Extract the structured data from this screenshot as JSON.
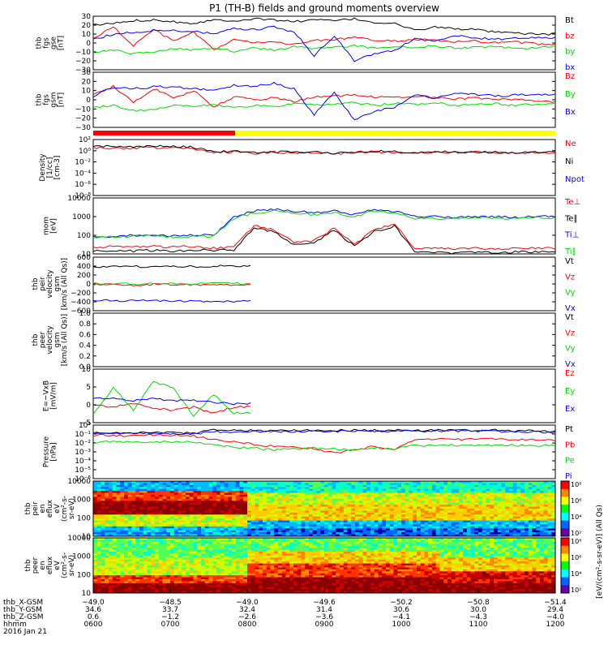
{
  "title": "P1 (TH-B) fields and ground moments overview",
  "colors": {
    "black": "#000000",
    "red": "#ff0000",
    "green": "#00dd00",
    "blue": "#0000ff",
    "yellow_bar": "#ffff00",
    "red_bar": "#ff0000"
  },
  "chart_data": [
    {
      "type": "line",
      "ylabel": [
        "thb",
        "fgs",
        "gse",
        "[nT]"
      ],
      "yticks": [
        "30",
        "20",
        "10",
        "0",
        "−10",
        "−20",
        "−30"
      ],
      "ylim": [
        -30,
        30
      ],
      "series": [
        {
          "name": "Bt",
          "color": "#000000",
          "values": [
            20,
            22,
            25,
            26,
            24,
            22,
            26,
            25,
            27,
            26,
            24,
            26,
            25,
            27,
            23,
            22,
            14,
            18,
            16,
            15,
            12,
            11,
            10,
            10
          ]
        },
        {
          "name": "bz",
          "color": "#ff0000",
          "values": [
            5,
            18,
            -3,
            15,
            2,
            12,
            -8,
            4,
            0,
            2,
            -2,
            3,
            4,
            6,
            3,
            2,
            4,
            3,
            1,
            2,
            0,
            1,
            -1,
            -2
          ]
        },
        {
          "name": "by",
          "color": "#00dd00",
          "values": [
            -10,
            -8,
            -12,
            -10,
            -6,
            -8,
            -5,
            -9,
            -6,
            -8,
            -4,
            -6,
            -5,
            -3,
            -6,
            -4,
            -5,
            -3,
            -6,
            -5,
            -4,
            -6,
            -5,
            -4
          ]
        },
        {
          "name": "bx",
          "color": "#0000ff",
          "values": [
            4,
            10,
            12,
            14,
            14,
            13,
            10,
            16,
            15,
            18,
            12,
            -14,
            8,
            -20,
            -12,
            -8,
            5,
            2,
            8,
            6,
            4,
            5,
            6,
            6
          ]
        }
      ]
    },
    {
      "type": "line",
      "ylabel": [
        "thb",
        "fgs",
        "gsm",
        "[nT]"
      ],
      "yticks": [
        "30",
        "20",
        "10",
        "0",
        "−10",
        "−20",
        "−30"
      ],
      "ylim": [
        -30,
        30
      ],
      "series": [
        {
          "name": "Bz",
          "color": "#ff0000",
          "values": [
            5,
            15,
            -3,
            12,
            2,
            10,
            -8,
            3,
            0,
            2,
            -2,
            3,
            4,
            5,
            3,
            2,
            4,
            3,
            1,
            2,
            0,
            1,
            -1,
            -2
          ]
        },
        {
          "name": "By",
          "color": "#00dd00",
          "values": [
            -8,
            -6,
            -12,
            -10,
            -6,
            -7,
            -5,
            -9,
            -6,
            -8,
            -4,
            -6,
            -5,
            -3,
            -6,
            -4,
            -5,
            -3,
            -6,
            -5,
            -4,
            -6,
            -5,
            -4
          ]
        },
        {
          "name": "Bx",
          "color": "#0000ff",
          "values": [
            4,
            14,
            12,
            14,
            14,
            12,
            10,
            16,
            15,
            18,
            12,
            -16,
            8,
            -22,
            -12,
            -8,
            5,
            2,
            8,
            6,
            4,
            5,
            6,
            6
          ]
        }
      ]
    },
    {
      "type": "line",
      "ylabel": [
        "Density",
        "[1/cc]",
        "[cm-3]"
      ],
      "scale": "log",
      "yticks": [
        "10²",
        "10⁰",
        "10⁻²",
        "10⁻⁴",
        "10⁻⁶",
        "10⁻⁸"
      ],
      "ylim": [
        -8,
        3
      ],
      "series": [
        {
          "name": "Ne",
          "color": "#ff0000",
          "values": [
            1.4,
            1.3,
            1.3,
            1.4,
            1.3,
            1.2,
            0.5,
            0.6,
            0.3,
            0.5,
            0.4,
            0.5,
            0.2,
            0.5,
            0.6,
            0.5,
            0.4,
            0.5,
            0.4,
            0.5,
            0.4,
            0.3,
            0.4,
            0.4
          ]
        },
        {
          "name": "Ni",
          "color": "#000000",
          "values": [
            1.7,
            1.7,
            1.6,
            1.7,
            1.6,
            1.5,
            0.6,
            0.7,
            0.4,
            0.6,
            0.5,
            0.6,
            0.3,
            0.6,
            0.7,
            0.6,
            0.5,
            0.6,
            0.5,
            0.6,
            0.5,
            0.4,
            0.5,
            0.5
          ]
        },
        {
          "name": "Npot",
          "color": "#0000ff",
          "values": []
        }
      ]
    },
    {
      "type": "line",
      "ylabel": [
        "mom",
        "[eV]"
      ],
      "scale": "log",
      "yticks": [
        "10000",
        "1000",
        "100",
        "10"
      ],
      "ylim": [
        1,
        4
      ],
      "series": [
        {
          "name": "Te⊥",
          "color": "#ff0000",
          "values": [
            1.35,
            1.4,
            1.38,
            1.4,
            1.38,
            1.4,
            1.3,
            1.35,
            2.5,
            2.3,
            1.6,
            1.7,
            2.4,
            1.5,
            2.3,
            2.6,
            1.3,
            1.3,
            1.25,
            1.3,
            1.25,
            1.3,
            1.3,
            1.3
          ]
        },
        {
          "name": "Te∥",
          "color": "#000000",
          "values": [
            1.15,
            1.2,
            1.15,
            1.2,
            1.15,
            1.2,
            1.2,
            1.2,
            2.4,
            2.2,
            1.5,
            1.6,
            2.3,
            1.4,
            2.2,
            2.5,
            1.1,
            1.1,
            1.05,
            1.1,
            1.05,
            1.1,
            1.1,
            1.1
          ]
        },
        {
          "name": "Ti⊥",
          "color": "#0000ff",
          "values": [
            1.9,
            1.95,
            2.0,
            2.0,
            1.95,
            2.0,
            2.0,
            3.0,
            3.3,
            3.4,
            3.3,
            3.2,
            3.3,
            3.1,
            3.4,
            3.3,
            3.0,
            3.0,
            2.95,
            3.0,
            3.0,
            2.95,
            3.0,
            3.0
          ]
        },
        {
          "name": "Ti∥",
          "color": "#00dd00",
          "values": [
            1.9,
            1.9,
            1.95,
            2.0,
            1.9,
            1.95,
            1.95,
            2.9,
            3.2,
            3.3,
            3.2,
            3.1,
            3.2,
            3.0,
            3.3,
            3.2,
            2.9,
            2.9,
            2.9,
            2.95,
            2.9,
            2.9,
            2.95,
            2.95
          ]
        }
      ]
    },
    {
      "type": "line",
      "ylabel": [
        "thb",
        "peir",
        "velocity",
        "gsm",
        "[km/s (All Qs)]"
      ],
      "yticks": [
        "600",
        "400",
        "200",
        "0",
        "−200",
        "−400",
        "−600"
      ],
      "ylim": [
        -600,
        600
      ],
      "series": [
        {
          "name": "Vt",
          "color": "#000000",
          "values": [
            380,
            385,
            390,
            380,
            395,
            390,
            400,
            410,
            null,
            null,
            null,
            null,
            null,
            null,
            null,
            null,
            null,
            null,
            null,
            null,
            null,
            null,
            null,
            null
          ]
        },
        {
          "name": "Vz",
          "color": "#ff0000",
          "values": [
            -20,
            -10,
            -30,
            -5,
            -20,
            -15,
            -25,
            -20,
            null,
            null,
            null,
            null,
            null,
            null,
            null,
            null,
            null,
            null,
            null,
            null,
            null,
            null,
            null,
            null
          ]
        },
        {
          "name": "Vy",
          "color": "#00dd00",
          "values": [
            10,
            20,
            0,
            15,
            10,
            5,
            20,
            10,
            null,
            null,
            null,
            null,
            null,
            null,
            null,
            null,
            null,
            null,
            null,
            null,
            null,
            null,
            null,
            null
          ]
        },
        {
          "name": "Vx",
          "color": "#0000ff",
          "values": [
            -370,
            -375,
            -380,
            -370,
            -385,
            -380,
            -390,
            -395,
            null,
            null,
            null,
            null,
            null,
            null,
            null,
            null,
            null,
            null,
            null,
            null,
            null,
            null,
            null,
            null
          ]
        }
      ]
    },
    {
      "type": "line",
      "ylabel": [
        "thb",
        "peer",
        "velocity",
        "gsm",
        "[km/s (All Qs)]"
      ],
      "yticks": [
        "1.0",
        "0.8",
        "0.6",
        "0.4",
        "0.2",
        "0.0"
      ],
      "ylim": [
        0,
        1
      ],
      "series": [
        {
          "name": "Vt",
          "color": "#000000",
          "values": []
        },
        {
          "name": "Vz",
          "color": "#ff0000",
          "values": []
        },
        {
          "name": "Vy",
          "color": "#00dd00",
          "values": []
        },
        {
          "name": "Vx",
          "color": "#0000ff",
          "values": []
        }
      ]
    },
    {
      "type": "line",
      "ylabel": [
        "E=−VxB",
        "[mV/m]"
      ],
      "yticks": [
        "10",
        "5",
        "0",
        "−5"
      ],
      "ylim": [
        -7,
        10
      ],
      "series": [
        {
          "name": "Ez",
          "color": "#ff0000",
          "values": [
            -1.5,
            -2,
            -1,
            -2.5,
            -3,
            -2,
            -4,
            -2,
            null,
            null,
            null,
            null,
            null,
            null,
            null,
            null,
            null,
            null,
            null,
            null,
            null,
            null,
            null,
            null
          ]
        },
        {
          "name": "Ey",
          "color": "#00dd00",
          "values": [
            -4,
            4,
            -3,
            6,
            4,
            -5,
            2,
            -4,
            null,
            null,
            null,
            null,
            null,
            null,
            null,
            null,
            null,
            null,
            null,
            null,
            null,
            null,
            null,
            null
          ]
        },
        {
          "name": "Ex",
          "color": "#0000ff",
          "values": [
            0.5,
            1,
            0,
            0.5,
            0,
            0,
            -0.5,
            -1,
            null,
            null,
            null,
            null,
            null,
            null,
            null,
            null,
            null,
            null,
            null,
            null,
            null,
            null,
            null,
            null
          ]
        }
      ]
    },
    {
      "type": "line",
      "ylabel": [
        "Pressure",
        "[nPa]"
      ],
      "scale": "log",
      "yticks": [
        "10⁰",
        "10⁻¹",
        "10⁻²",
        "10⁻³",
        "10⁻⁴",
        "10⁻⁵",
        "10⁻⁶"
      ],
      "ylim": [
        -6,
        0.3
      ],
      "series": [
        {
          "name": "Pt",
          "color": "#000000",
          "values": [
            -0.6,
            -0.65,
            -0.6,
            -0.62,
            -0.6,
            -0.62,
            -0.3,
            -0.35,
            -0.3,
            -0.4,
            -0.35,
            -0.3,
            -0.35,
            -0.3,
            -0.32,
            -0.3,
            -0.35,
            -0.3,
            -0.3,
            -0.32,
            -0.3,
            -0.35,
            -0.4,
            -0.45
          ]
        },
        {
          "name": "Pb",
          "color": "#ff0000",
          "values": [
            -0.9,
            -0.9,
            -0.95,
            -0.9,
            -0.9,
            -0.95,
            -1.4,
            -1.6,
            -2.0,
            -2.2,
            -2.3,
            -2.5,
            -3.0,
            -2.6,
            -2.2,
            -2.5,
            -1.5,
            -1.3,
            -1.4,
            -1.3,
            -1.35,
            -1.4,
            -1.45,
            -1.5
          ]
        },
        {
          "name": "Pe",
          "color": "#00dd00",
          "values": [
            -1.7,
            -1.65,
            -1.7,
            -1.65,
            -1.7,
            -1.7,
            -2.0,
            -2.3,
            -2.4,
            -2.6,
            -2.5,
            -2.4,
            -2.5,
            -2.6,
            -2.4,
            -2.5,
            -2.1,
            -2.1,
            -2.05,
            -2.1,
            -2.1,
            -2.05,
            -2.1,
            -2.1
          ]
        },
        {
          "name": "Pi",
          "color": "#0000ff",
          "values": [
            -0.7,
            -0.7,
            -0.7,
            -0.7,
            -0.7,
            -0.7,
            -0.5,
            -0.5,
            -0.4,
            -0.5,
            -0.45,
            -0.4,
            -0.45,
            -0.4,
            -0.42,
            -0.4,
            -0.45,
            -0.4,
            -0.4,
            -0.42,
            -0.4,
            -0.45,
            -0.5,
            -0.55
          ]
        }
      ]
    },
    {
      "type": "heatmap",
      "ylabel": [
        "thb",
        "peir",
        "en",
        "eflux",
        "eV",
        "(cm²-s-",
        "sr-eV)"
      ],
      "yticks": [
        "10000",
        "1000",
        "100",
        "10"
      ],
      "colorbar": {
        "ticks": [
          "10⁸",
          "10⁶",
          "10⁴",
          "10²"
        ],
        "label": "[eV/(cm²-s-sr-eV)] (All Qs)"
      }
    },
    {
      "type": "heatmap",
      "ylabel": [
        "thb",
        "peer",
        "en",
        "eflux",
        "eV",
        "(cm²-s-",
        "sr-eV)"
      ],
      "yticks": [
        "10000",
        "1000",
        "100",
        "10"
      ],
      "colorbar": {
        "ticks": [
          "10⁸",
          "10⁶",
          "10⁴",
          "10²"
        ],
        "label": "[eV/(cm²-s-sr-eV)] (All Qs)"
      }
    }
  ],
  "xaxis": {
    "rows": [
      {
        "label": "thb_X-GSM",
        "values": [
          "−49.0",
          "−48.5",
          "−49.0",
          "−49.6",
          "−50.2",
          "−50.8",
          "−51.4"
        ]
      },
      {
        "label": "thb_Y-GSM",
        "values": [
          "34.6",
          "33.7",
          "32.4",
          "31.4",
          "30.6",
          "30.0",
          "29.4"
        ]
      },
      {
        "label": "thb_Z-GSM",
        "values": [
          "0.6",
          "−1.2",
          "−2.6",
          "−3.6",
          "−4.1",
          "−4.3",
          "−4.0"
        ]
      },
      {
        "label": "hhmm",
        "values": [
          "0600",
          "0700",
          "0800",
          "0900",
          "1000",
          "1100",
          "1200"
        ]
      }
    ],
    "date": "2016 Jan 21"
  }
}
